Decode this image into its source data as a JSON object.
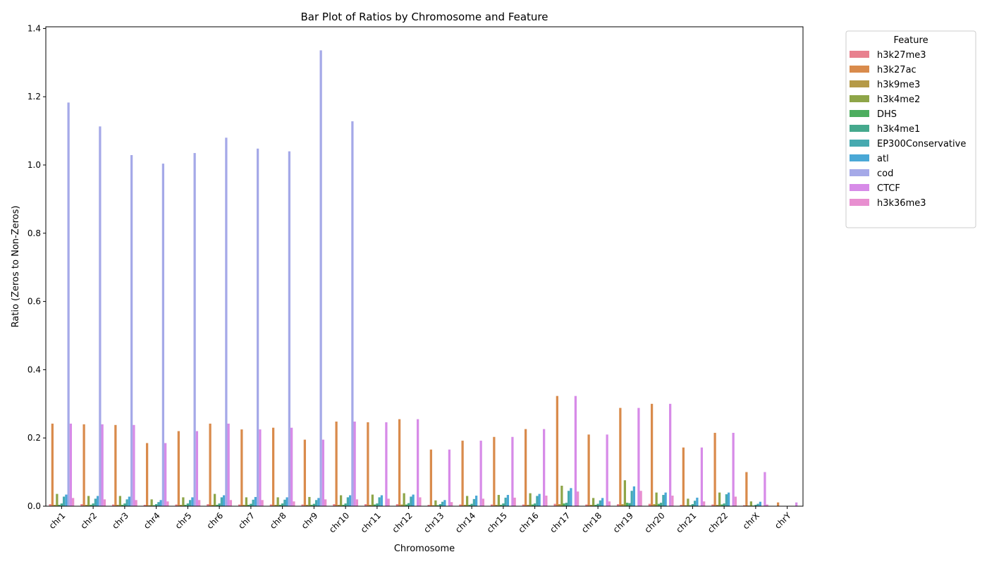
{
  "chart_data": {
    "type": "bar",
    "title": "Bar Plot of Ratios by Chromosome and Feature",
    "xlabel": "Chromosome",
    "ylabel": "Ratio (Zeros to Non-Zeros)",
    "ylim": [
      0,
      1.405
    ],
    "yticks": [
      "0.0",
      "0.2",
      "0.4",
      "0.6",
      "0.8",
      "1.0",
      "1.2",
      "1.4"
    ],
    "legend_title": "Feature",
    "legend_position": "outside-right",
    "categories": [
      "chr1",
      "chr2",
      "chr3",
      "chr4",
      "chr5",
      "chr6",
      "chr7",
      "chr8",
      "chr9",
      "chr10",
      "chr11",
      "chr12",
      "chr13",
      "chr14",
      "chr15",
      "chr16",
      "chr17",
      "chr18",
      "chr19",
      "chr20",
      "chr21",
      "chr22",
      "chrX",
      "chrY"
    ],
    "series": [
      {
        "name": "h3k27me3",
        "color": "#e8818f",
        "values": [
          0.006,
          0.006,
          0.005,
          0.004,
          0.005,
          0.006,
          0.005,
          0.005,
          0.005,
          0.006,
          0.006,
          0.006,
          0.004,
          0.005,
          0.005,
          0.005,
          0.007,
          0.005,
          0.006,
          0.007,
          0.004,
          0.005,
          0.003,
          0.0
        ]
      },
      {
        "name": "h3k27ac",
        "color": "#d98b4c",
        "values": [
          0.242,
          0.24,
          0.238,
          0.185,
          0.22,
          0.242,
          0.225,
          0.23,
          0.195,
          0.248,
          0.246,
          0.255,
          0.166,
          0.192,
          0.203,
          0.226,
          0.323,
          0.21,
          0.288,
          0.3,
          0.172,
          0.215,
          0.1,
          0.011
        ]
      },
      {
        "name": "h3k9me3",
        "color": "#b59a47",
        "values": [
          0.004,
          0.004,
          0.004,
          0.003,
          0.004,
          0.004,
          0.004,
          0.004,
          0.004,
          0.004,
          0.004,
          0.005,
          0.003,
          0.004,
          0.004,
          0.004,
          0.006,
          0.004,
          0.006,
          0.006,
          0.003,
          0.004,
          0.002,
          0.0
        ]
      },
      {
        "name": "h3k4me2",
        "color": "#8ea548",
        "values": [
          0.036,
          0.03,
          0.03,
          0.02,
          0.026,
          0.036,
          0.026,
          0.026,
          0.027,
          0.032,
          0.034,
          0.038,
          0.017,
          0.03,
          0.033,
          0.038,
          0.06,
          0.024,
          0.076,
          0.04,
          0.022,
          0.04,
          0.014,
          0.0
        ]
      },
      {
        "name": "DHS",
        "color": "#4dae5f",
        "values": [
          0.004,
          0.004,
          0.004,
          0.003,
          0.004,
          0.004,
          0.004,
          0.004,
          0.004,
          0.004,
          0.005,
          0.005,
          0.003,
          0.004,
          0.004,
          0.005,
          0.008,
          0.004,
          0.01,
          0.007,
          0.003,
          0.005,
          0.002,
          0.0
        ]
      },
      {
        "name": "h3k4me1",
        "color": "#45a98d",
        "values": [
          0.008,
          0.008,
          0.008,
          0.006,
          0.008,
          0.008,
          0.007,
          0.008,
          0.007,
          0.008,
          0.008,
          0.009,
          0.006,
          0.007,
          0.008,
          0.008,
          0.01,
          0.007,
          0.009,
          0.01,
          0.006,
          0.008,
          0.004,
          0.0
        ]
      },
      {
        "name": "EP300Conservative",
        "color": "#46aab0",
        "values": [
          0.028,
          0.022,
          0.02,
          0.012,
          0.018,
          0.026,
          0.019,
          0.019,
          0.018,
          0.026,
          0.026,
          0.028,
          0.013,
          0.021,
          0.025,
          0.03,
          0.045,
          0.017,
          0.045,
          0.033,
          0.016,
          0.035,
          0.007,
          0.0
        ]
      },
      {
        "name": "atl",
        "color": "#4aa8d6",
        "values": [
          0.034,
          0.03,
          0.028,
          0.018,
          0.026,
          0.032,
          0.027,
          0.026,
          0.024,
          0.032,
          0.032,
          0.034,
          0.018,
          0.031,
          0.033,
          0.036,
          0.053,
          0.024,
          0.058,
          0.04,
          0.025,
          0.04,
          0.013,
          0.0
        ]
      },
      {
        "name": "cod",
        "color": "#a5a9e8",
        "values": [
          1.183,
          1.113,
          1.029,
          1.004,
          1.035,
          1.08,
          1.048,
          1.04,
          1.336,
          1.128,
          0,
          0,
          0,
          0,
          0,
          0,
          0,
          0,
          0,
          0,
          0,
          0,
          0,
          0
        ]
      },
      {
        "name": "CTCF",
        "color": "#d78be8",
        "values": [
          0.242,
          0.24,
          0.238,
          0.185,
          0.22,
          0.242,
          0.225,
          0.23,
          0.195,
          0.248,
          0.246,
          0.255,
          0.166,
          0.192,
          0.203,
          0.226,
          0.323,
          0.21,
          0.288,
          0.3,
          0.172,
          0.215,
          0.1,
          0.011
        ]
      },
      {
        "name": "h3k36me3",
        "color": "#e88fd0",
        "values": [
          0.024,
          0.02,
          0.018,
          0.014,
          0.018,
          0.018,
          0.018,
          0.014,
          0.02,
          0.02,
          0.022,
          0.026,
          0.012,
          0.022,
          0.025,
          0.031,
          0.043,
          0.014,
          0.045,
          0.031,
          0.014,
          0.028,
          0.005,
          0.0
        ]
      }
    ]
  }
}
